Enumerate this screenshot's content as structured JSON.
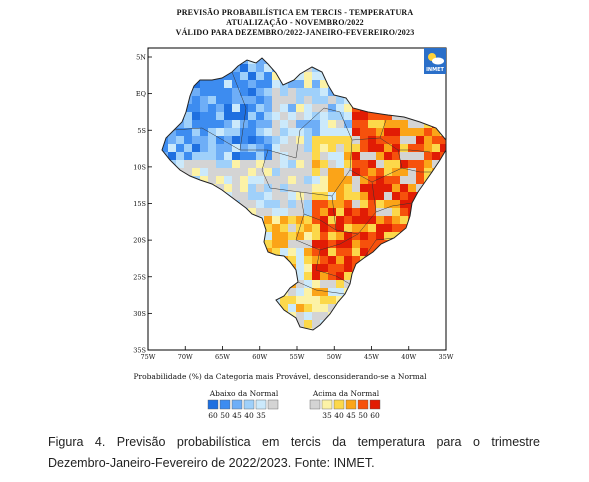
{
  "title": {
    "line1": "PREVISÃO PROBABILÍSTICA EM TERCIS - TEMPERATURA",
    "line2": "ATUALIZAÇÃO - NOVEMBRO/2022",
    "line3": "VÁLIDO PARA DEZEMBRO/2022-JANEIRO-FEVEREIRO/2023"
  },
  "logo": {
    "text": "INMET"
  },
  "axes": {
    "lat_labels": [
      "5N",
      "EQ",
      "5S",
      "10S",
      "15S",
      "20S",
      "25S",
      "30S",
      "35S"
    ],
    "lon_labels": [
      "75W",
      "70W",
      "65W",
      "60W",
      "55W",
      "50W",
      "45W",
      "40W",
      "35W"
    ]
  },
  "map_note": "Probabilidade (%) da Categoria mais Provável, desconsiderando-se a Normal",
  "legend": {
    "below_title": "Abaixo da Normal",
    "above_title": "Acima da Normal",
    "below": [
      {
        "label": "60",
        "color": "#1e6fe0"
      },
      {
        "label": "50",
        "color": "#3d8cf0"
      },
      {
        "label": "45",
        "color": "#6eaef7"
      },
      {
        "label": "40",
        "color": "#9fd0fa"
      },
      {
        "label": "35",
        "color": "#cbe9fb"
      }
    ],
    "normal_color": "#d4d4d4",
    "above": [
      {
        "label": "35",
        "color": "#fcf2a6"
      },
      {
        "label": "40",
        "color": "#fcd84a"
      },
      {
        "label": "45",
        "color": "#fba418"
      },
      {
        "label": "50",
        "color": "#f6510c"
      },
      {
        "label": "60",
        "color": "#e11c04"
      }
    ]
  },
  "caption": {
    "line1": "Figura 4. Previsão probabilística em tercis da temperatura para o trimestre",
    "line2": "Dezembro-Janeiro-Fevereiro de 2022/2023. Fonte: INMET."
  }
}
